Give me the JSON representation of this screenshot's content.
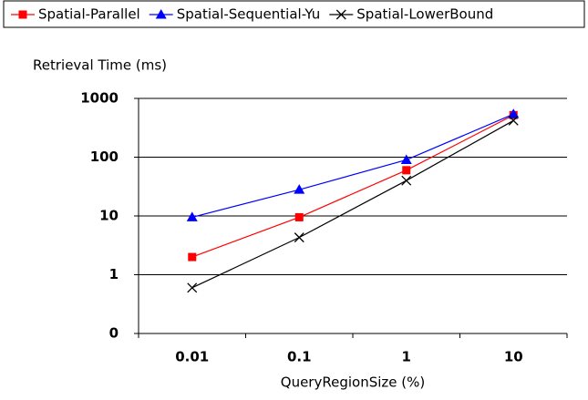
{
  "chart_data": {
    "type": "line",
    "y_label": "Retrieval Time (ms)",
    "x_label": "QueryRegionSize (%)",
    "categories": [
      "0.01",
      "0.1",
      "1",
      "10"
    ],
    "series": [
      {
        "name": "Spatial-Parallel",
        "color": "#ff0000",
        "marker": "square",
        "values": [
          2,
          9.5,
          60,
          520
        ]
      },
      {
        "name": "Spatial-Sequential-Yu",
        "color": "#0000ff",
        "marker": "triangle",
        "values": [
          9.5,
          28,
          90,
          540
        ]
      },
      {
        "name": "Spatial-LowerBound",
        "color": "#000000",
        "marker": "x",
        "values": [
          0.6,
          4.3,
          40,
          420
        ]
      }
    ],
    "log_scale": true,
    "ylim": [
      0.1,
      1000
    ],
    "yticks": [
      {
        "value": 0.1,
        "label": "0"
      },
      1,
      10,
      100,
      1000
    ],
    "grid": true,
    "legend": "top"
  }
}
